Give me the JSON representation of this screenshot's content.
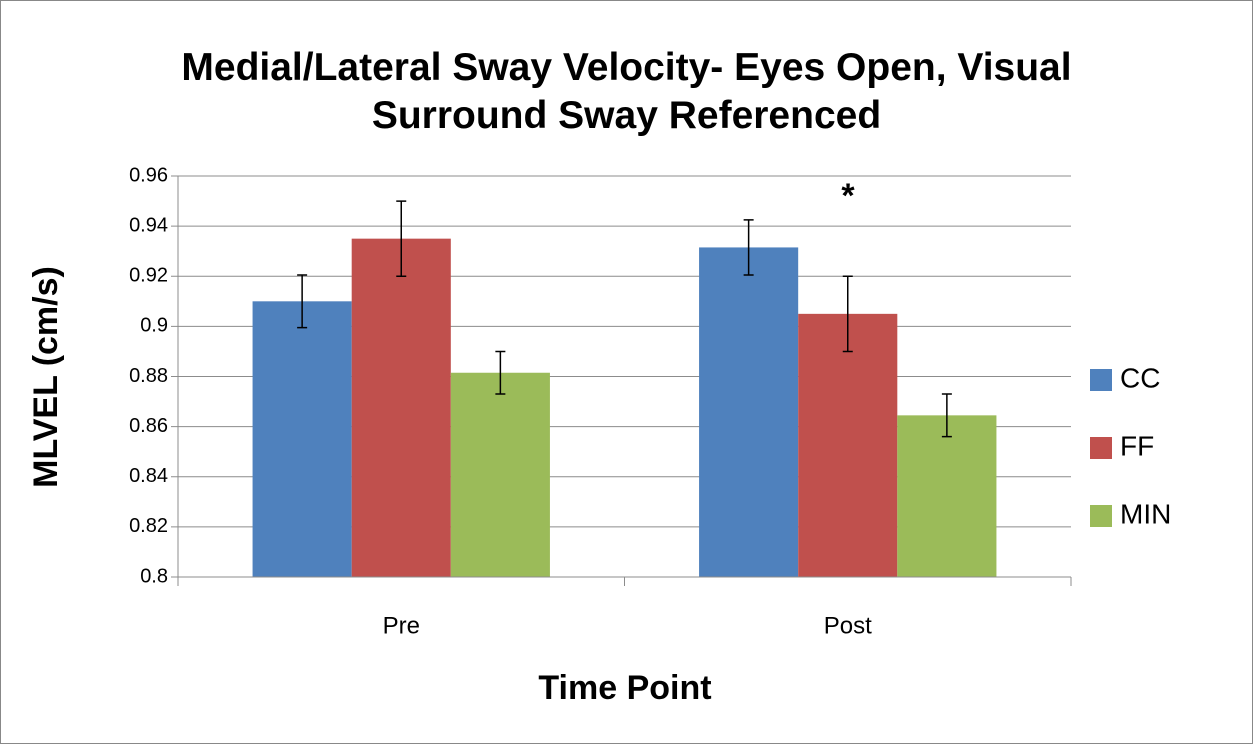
{
  "chart_data": {
    "type": "bar",
    "title": "Medial/Lateral Sway Velocity- Eyes Open, Visual Surround Sway Referenced",
    "x_label": "Time Point",
    "y_label": "MLVEL (cm/s)",
    "categories": [
      "Pre",
      "Post"
    ],
    "series": [
      {
        "name": "CC",
        "color": "#4f81bd",
        "values": [
          0.91,
          0.9315
        ],
        "errors": [
          0.0105,
          0.011
        ]
      },
      {
        "name": "FF",
        "color": "#c0504d",
        "values": [
          0.935,
          0.905
        ],
        "errors": [
          0.015,
          0.015
        ]
      },
      {
        "name": "MIN",
        "color": "#9bbb59",
        "values": [
          0.8815,
          0.8645
        ],
        "errors": [
          0.0085,
          0.0085
        ]
      }
    ],
    "annotation": "*",
    "ylim": [
      0.8,
      0.96
    ],
    "yticks": [
      0.8,
      0.82,
      0.84,
      0.86,
      0.88,
      0.9,
      0.92,
      0.94,
      0.96
    ],
    "grid": true,
    "legend": "right"
  }
}
